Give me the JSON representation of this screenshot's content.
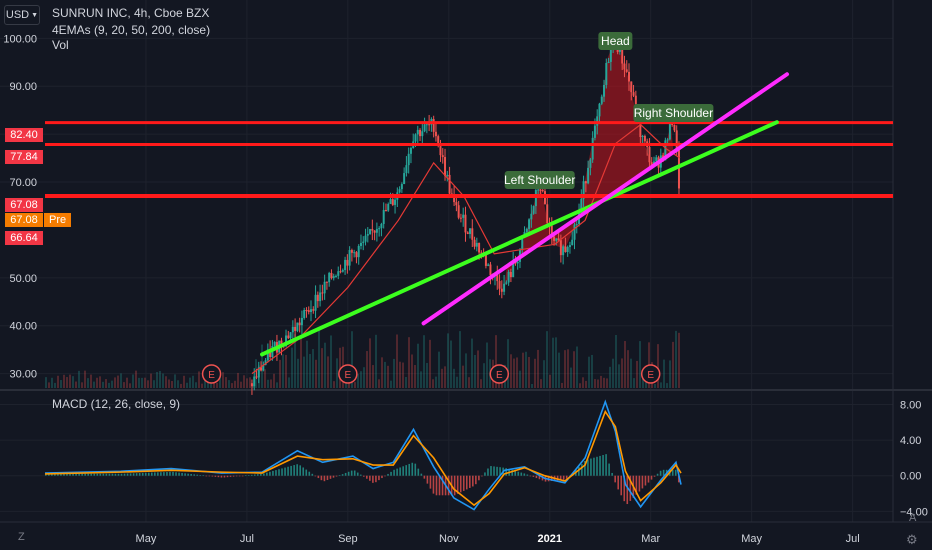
{
  "header": {
    "currency": "USD",
    "title": "SUNRUN INC, 4h, Cboe BZX",
    "indicator": "4EMAs (9, 20, 50, 200, close)",
    "volume": "Vol",
    "macd_label": "MACD (12, 26, close, 9)"
  },
  "price_axis": {
    "ticks": [
      "100.00",
      "90.00",
      "80.00",
      "70.00",
      "50.00",
      "40.00",
      "30.00"
    ],
    "tick_values": [
      100,
      90,
      80,
      70,
      50,
      40,
      30
    ],
    "badges": [
      {
        "text": "82.40",
        "value": 82.4,
        "color": "#f23645"
      },
      {
        "text": "77.84",
        "value": 77.84,
        "color": "#f23645"
      },
      {
        "text": "67.08",
        "value": 67.08,
        "color": "#f23645"
      },
      {
        "text": "67.08",
        "value": 67.08,
        "color": "#f57c00"
      },
      {
        "text": "66.64",
        "value": 66.64,
        "color": "#f23645"
      }
    ],
    "pre_label": "Pre"
  },
  "macd_axis": {
    "ticks": [
      "8.00",
      "4.00",
      "0.00",
      "−4.00"
    ],
    "tick_values": [
      8,
      4,
      0,
      -4
    ]
  },
  "time_axis": {
    "labels": [
      "May",
      "Jul",
      "Sep",
      "Nov",
      "2021",
      "Mar",
      "May",
      "Jul"
    ],
    "positions": [
      3.5,
      5.5,
      7.5,
      9.5,
      11.5,
      13.5,
      15.5,
      17.5
    ]
  },
  "annotations": {
    "head": "Head",
    "left_shoulder": "Left Shoulder",
    "right_shoulder": "Right Shoulder",
    "earnings_marker": "E"
  },
  "footer": {
    "left_button": "Z",
    "right_button": "A"
  },
  "chart_data": [
    {
      "type": "candlestick",
      "title": "SUNRUN INC, 4h, Cboe BZX",
      "x_unit": "months since Jan 2020",
      "x_range": [
        1.5,
        18.3
      ],
      "ylim": [
        27,
        108
      ],
      "last_price": 67.08,
      "horizontal_levels": [
        82.4,
        77.84,
        67.08
      ],
      "earnings_dates_month": [
        4.8,
        7.5,
        10.5,
        13.5
      ],
      "series": [
        {
          "name": "price",
          "x": [
            5.6,
            6.0,
            6.5,
            6.9,
            7.3,
            7.7,
            7.9,
            8.2,
            8.5,
            8.8,
            9.2,
            9.6,
            10.0,
            10.4,
            10.6,
            10.85,
            11.05,
            11.3,
            11.55,
            11.8,
            12.05,
            12.3,
            12.55,
            12.65,
            12.8,
            13.05,
            13.3,
            13.55,
            13.75,
            13.95,
            14.08
          ],
          "values": [
            28,
            35,
            40,
            46,
            52,
            56,
            58,
            63,
            68,
            80,
            82,
            65,
            58,
            50,
            48,
            54,
            60,
            70,
            57,
            56,
            62,
            76,
            88,
            96,
            100,
            92,
            80,
            73,
            76,
            84,
            67
          ]
        },
        {
          "name": "ema",
          "x": [
            5.6,
            6.5,
            7.5,
            8.5,
            9.2,
            9.8,
            10.4,
            11.0,
            11.6,
            12.2,
            12.8,
            13.3,
            13.8,
            14.08
          ],
          "values": [
            30,
            37,
            48,
            62,
            74,
            67,
            55,
            56,
            57,
            62,
            78,
            82,
            77,
            75
          ]
        },
        {
          "name": "trendline_green",
          "x": [
            5.8,
            16.0
          ],
          "values": [
            34,
            82.5
          ]
        },
        {
          "name": "trendline_magenta",
          "x": [
            9.0,
            16.2
          ],
          "values": [
            40.5,
            92.5
          ]
        }
      ]
    },
    {
      "type": "line",
      "title": "MACD (12, 26, close, 9)",
      "ylim": [
        -5.2,
        9.4
      ],
      "series": [
        {
          "name": "macd",
          "x": [
            1.5,
            3.0,
            4.0,
            5.0,
            5.8,
            6.5,
            7.0,
            7.6,
            8.0,
            8.4,
            8.8,
            9.2,
            9.6,
            10.0,
            10.3,
            10.6,
            11.0,
            11.4,
            11.8,
            12.2,
            12.6,
            12.8,
            13.0,
            13.3,
            13.7,
            14.0,
            14.1
          ],
          "values": [
            0.3,
            0.5,
            0.8,
            0.3,
            0.4,
            2.8,
            1.5,
            2.2,
            0.8,
            1.5,
            5.2,
            1.0,
            -2.5,
            -3.8,
            -1.5,
            0.6,
            1.0,
            -0.3,
            -0.8,
            2.0,
            8.3,
            5.0,
            -1.0,
            -3.5,
            -0.5,
            1.5,
            -1.0
          ]
        },
        {
          "name": "signal",
          "x": [
            1.5,
            3.0,
            4.0,
            5.0,
            5.8,
            6.5,
            7.0,
            7.6,
            8.0,
            8.4,
            8.8,
            9.2,
            9.6,
            10.0,
            10.3,
            10.6,
            11.0,
            11.4,
            11.8,
            12.2,
            12.6,
            12.8,
            13.0,
            13.3,
            13.7,
            14.0,
            14.1
          ],
          "values": [
            0.2,
            0.4,
            0.6,
            0.4,
            0.3,
            2.2,
            1.8,
            1.9,
            1.2,
            1.2,
            4.5,
            2.0,
            -1.5,
            -3.3,
            -2.0,
            0.2,
            0.9,
            0.0,
            -0.6,
            1.2,
            7.2,
            5.5,
            0.5,
            -2.8,
            -0.8,
            1.2,
            0.3
          ]
        }
      ]
    }
  ]
}
